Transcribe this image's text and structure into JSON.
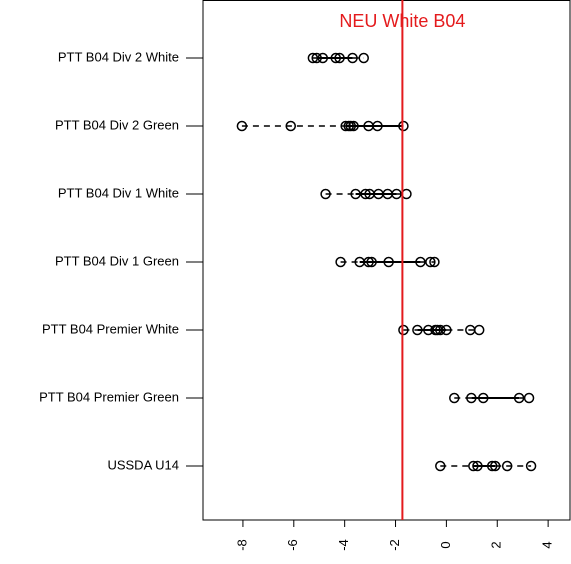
{
  "chart_data": {
    "type": "dotbox",
    "annotation": "NEU White B04",
    "reference_x": -1.73,
    "reference_color": "#e41a1c",
    "categories": [
      "PTT B04 Div 2 White",
      "PTT B04 Div 2 Green",
      "PTT B04 Div 1 White",
      "PTT B04 Div 1 Green",
      "PTT B04 Premier White",
      "PTT B04 Premier Green",
      "USSDA U14"
    ],
    "points": [
      [
        -5.25,
        -5.1,
        -4.86,
        -4.35,
        -4.2,
        -3.69,
        -3.25
      ],
      [
        -8.04,
        -6.12,
        -3.96,
        -3.84,
        -3.76,
        -3.65,
        -3.06,
        -2.71,
        -1.69
      ],
      [
        -4.75,
        -3.57,
        -3.18,
        -3.02,
        -2.67,
        -2.31,
        -1.96,
        -1.57
      ],
      [
        -4.16,
        -3.41,
        -3.06,
        -2.94,
        -2.27,
        -1.02,
        -0.63,
        -0.47
      ],
      [
        -1.69,
        -1.14,
        -0.71,
        -0.43,
        -0.35,
        -0.24,
        0.0,
        0.94,
        1.29
      ],
      [
        0.31,
        0.98,
        1.45,
        2.86,
        3.25
      ],
      [
        -0.24,
        1.06,
        1.22,
        1.8,
        1.92,
        2.39,
        3.33
      ]
    ],
    "boxes": [
      [
        -5.25,
        -5.1,
        -3.69,
        -3.25
      ],
      [
        -8.04,
        -3.96,
        -1.69,
        -1.69
      ],
      [
        -4.75,
        -3.57,
        -1.96,
        -1.57
      ],
      [
        -4.16,
        -3.41,
        -1.02,
        -0.47
      ],
      [
        -1.69,
        -1.14,
        0.0,
        1.29
      ],
      [
        0.31,
        0.98,
        2.86,
        3.25
      ],
      [
        -0.24,
        1.06,
        1.92,
        3.33
      ]
    ],
    "xlim": [
      -9.57,
      4.86
    ],
    "xticks": [
      -8,
      -6,
      -4,
      -2,
      0,
      2,
      4
    ]
  }
}
